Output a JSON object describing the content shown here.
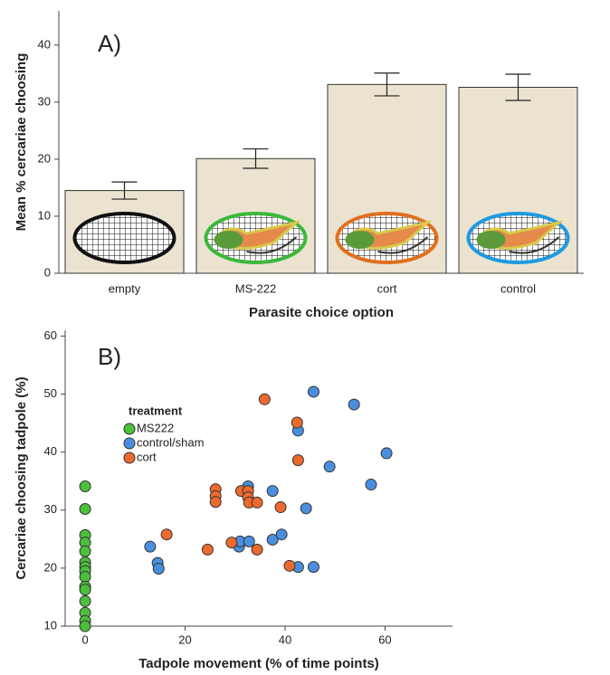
{
  "chart_data": [
    {
      "type": "bar",
      "annotation": "A)",
      "y_label": "Mean % cercariae choosing",
      "x_label": "Parasite choice option",
      "categories": [
        "empty",
        "MS-222",
        "cort",
        "control"
      ],
      "values": [
        14.5,
        20.1,
        33.1,
        32.6
      ],
      "errors": [
        1.5,
        1.7,
        2.0,
        2.3
      ],
      "color": "#ebe3d0",
      "icon_colors": [
        "#111111",
        "#3cb83c",
        "#e0701e",
        "#1e9be0"
      ],
      "ylim": [
        0,
        46
      ],
      "yticks": [
        0,
        10,
        20,
        30,
        40
      ]
    },
    {
      "type": "scatter",
      "annotation": "B)",
      "y_label": "Cercariae choosing tadpole (%)",
      "x_label": "Tadpole movement (% of time points)",
      "legend_title": "treatment",
      "xlim": [
        -4,
        73.5
      ],
      "ylim": [
        10,
        61
      ],
      "xticks": [
        0,
        20,
        40,
        60
      ],
      "yticks": [
        10,
        20,
        30,
        40,
        50,
        60
      ],
      "series": [
        {
          "name": "MS222",
          "color": "#4cbf3c",
          "x": [
            0,
            0,
            0,
            0,
            0,
            0,
            0,
            0,
            0,
            0,
            0,
            0,
            0,
            0,
            0
          ],
          "values": [
            34.1,
            30.2,
            25.7,
            24.4,
            22.9,
            21.0,
            20.2,
            19.5,
            18.5,
            16.8,
            16.3,
            14.3,
            12.3,
            10.9,
            10.0
          ]
        },
        {
          "name": "control/sham",
          "color": "#4a8fdf",
          "x": [
            13.0,
            14.5,
            14.7,
            30.8,
            31.0,
            32.8,
            32.6,
            37.5,
            37.5,
            39.3,
            42.6,
            45.7,
            42.6,
            44.2,
            45.7,
            53.8,
            48.9,
            57.2,
            60.3
          ],
          "values": [
            23.7,
            20.9,
            19.9,
            23.7,
            24.6,
            24.6,
            34.1,
            33.3,
            24.9,
            25.8,
            20.2,
            20.2,
            43.7,
            30.3,
            50.4,
            48.2,
            37.5,
            34.4,
            39.8
          ]
        },
        {
          "name": "cort",
          "color": "#ec6a2e",
          "x": [
            16.3,
            24.5,
            26.1,
            26.1,
            26.1,
            29.3,
            31.2,
            32.6,
            32.6,
            32.8,
            34.4,
            34.4,
            35.9,
            39.1,
            40.9,
            42.4,
            42.6
          ],
          "values": [
            25.8,
            23.2,
            33.6,
            32.4,
            31.4,
            24.4,
            33.3,
            33.3,
            32.2,
            31.3,
            31.3,
            23.2,
            49.1,
            30.5,
            20.4,
            45.1,
            38.6
          ]
        }
      ]
    }
  ]
}
